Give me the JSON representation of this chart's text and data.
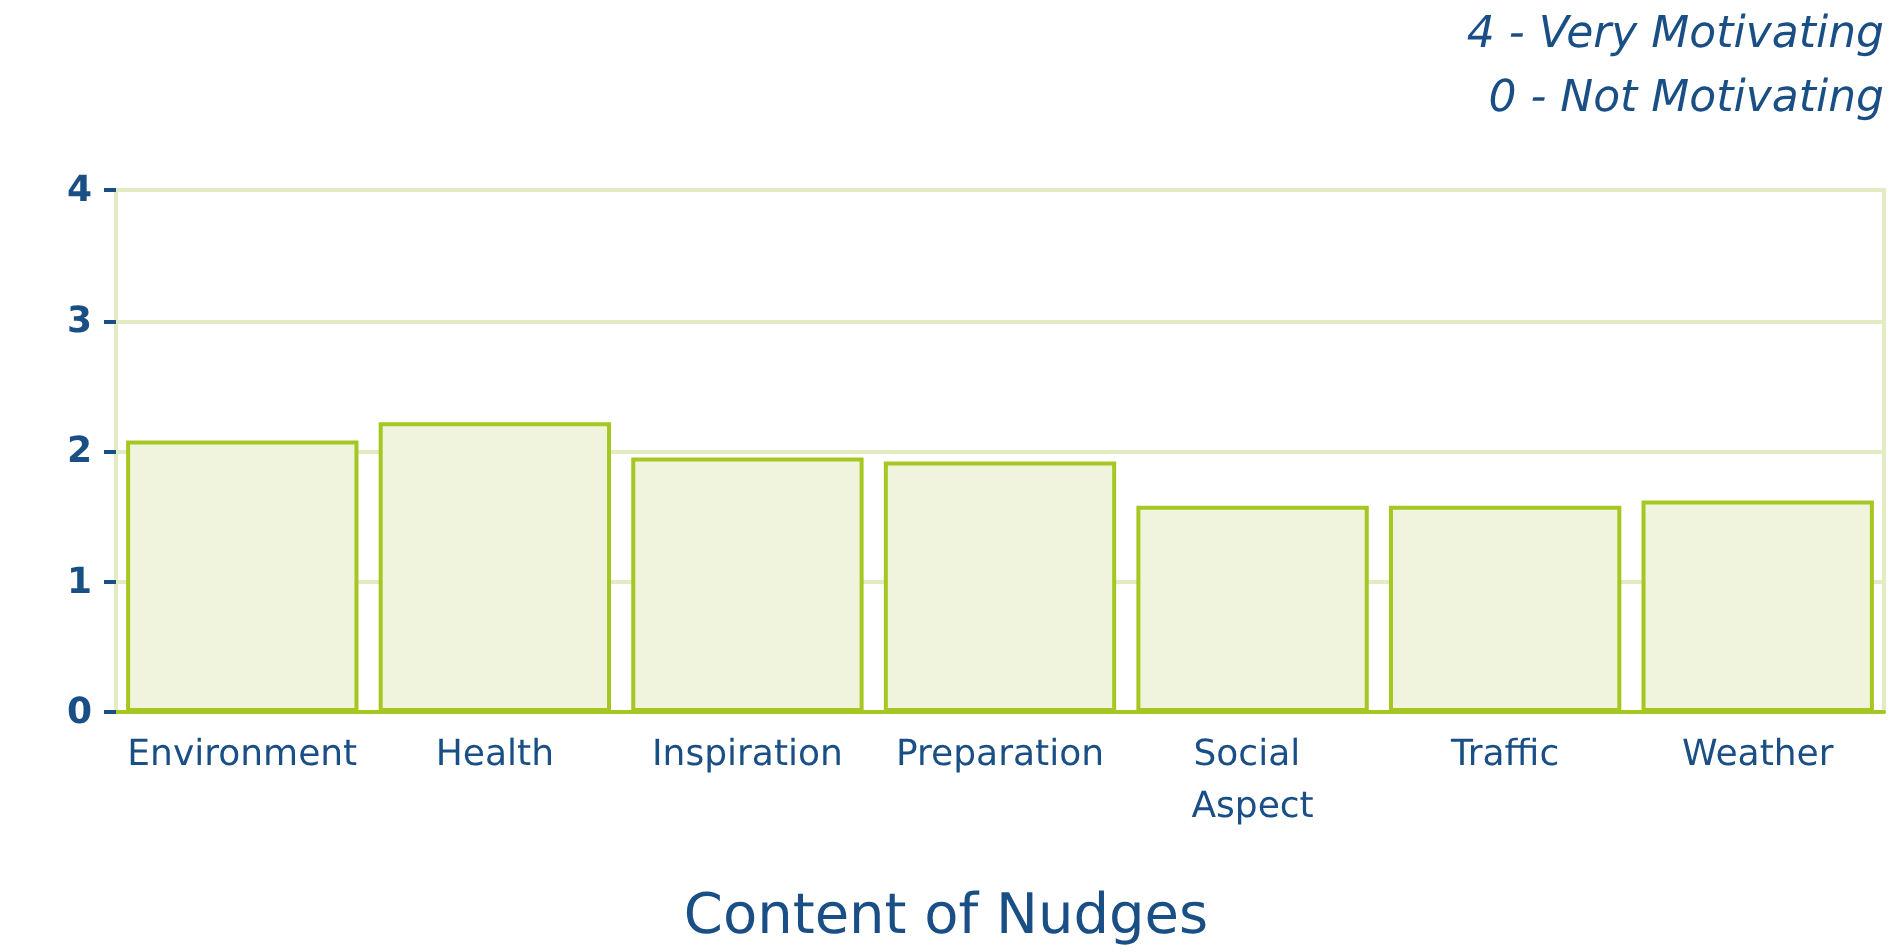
{
  "chart_data": {
    "type": "bar",
    "xlabel": "Content of Nudges",
    "annotations": [
      "4 - Very Motivating",
      "0 - Not Motivating"
    ],
    "categories": [
      "Environment",
      "Health",
      "Inspiration",
      "Preparation",
      "Social Aspect",
      "Traffic",
      "Weather"
    ],
    "series": [
      {
        "color": "#f0f4dc",
        "values": [
          2.08,
          2.22,
          1.95,
          1.92,
          1.58,
          1.58,
          1.62
        ]
      }
    ],
    "ylim": [
      0,
      4
    ],
    "yticks": [
      0,
      1,
      2,
      3,
      4
    ],
    "grid": "y"
  }
}
